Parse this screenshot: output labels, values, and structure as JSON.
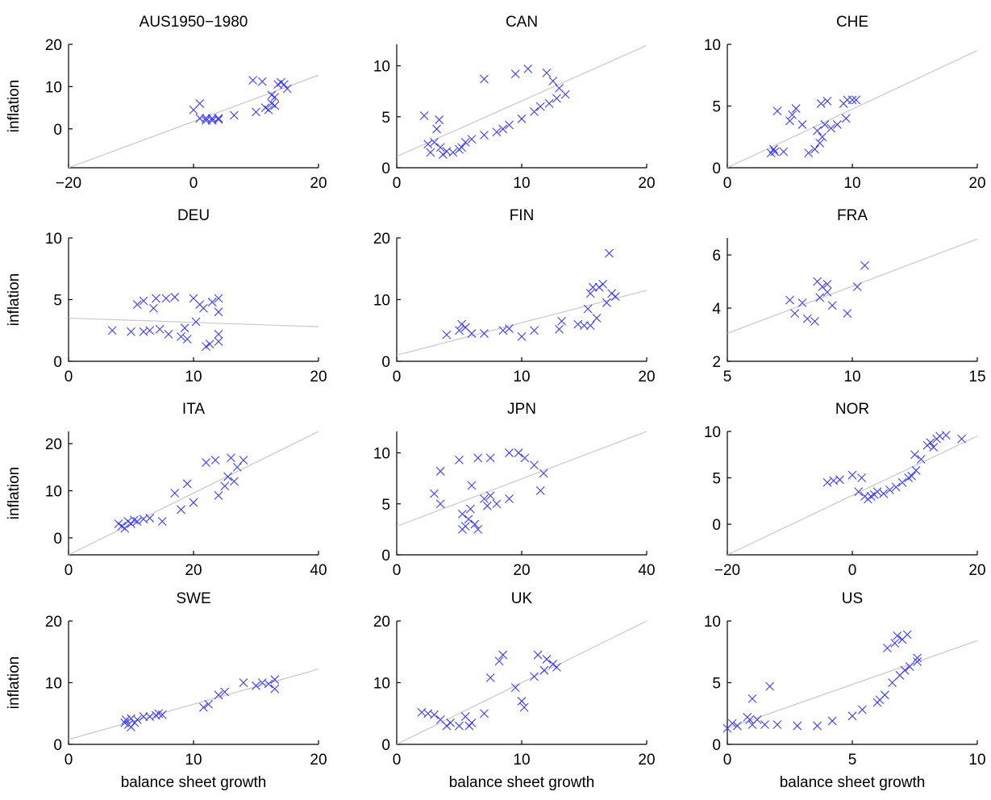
{
  "chart_data": [
    {
      "type": "scatter",
      "title": "AUS1950−1980",
      "ylabel": "inflation",
      "color": "#3b3bff",
      "fit_color": "#c8c8c8",
      "xlim": [
        -20,
        20
      ],
      "ylim": [
        -9.2,
        20
      ],
      "xticks": [
        {
          "value": -20,
          "label": "−20"
        },
        0,
        20
      ],
      "yticks": [
        0,
        10,
        20
      ],
      "x": [
        0,
        1,
        1,
        2,
        2,
        3,
        3,
        4,
        4,
        6.5,
        9.5,
        10,
        11,
        11.5,
        12,
        12.5,
        12.5,
        13,
        13.5,
        14,
        14.5,
        15,
        13
      ],
      "y": [
        4.5,
        6,
        2.5,
        2.5,
        2,
        2.5,
        2,
        2.2,
        2.5,
        3.2,
        11.5,
        4,
        11.2,
        5,
        4.5,
        8,
        6,
        7.5,
        10.5,
        11,
        10.5,
        9.5,
        5.5
      ],
      "fit": {
        "x": [
          -20,
          20
        ],
        "y": [
          -9.2,
          12.7
        ]
      }
    },
    {
      "type": "scatter",
      "title": "CAN",
      "color": "#3b3bff",
      "fit_color": "#c8c8c8",
      "xlim": [
        0,
        20
      ],
      "ylim": [
        0,
        12.1
      ],
      "xticks": [
        0,
        10,
        20
      ],
      "yticks": [
        0,
        5,
        10
      ],
      "x": [
        2.2,
        2.5,
        2.7,
        3,
        3.2,
        3.4,
        3.5,
        3.7,
        4,
        4.5,
        5,
        5.2,
        5.5,
        6,
        7,
        7,
        8,
        8.5,
        9,
        9.5,
        10,
        10.5,
        11,
        11.5,
        12,
        12.2,
        12.5,
        12.8,
        13,
        13.5
      ],
      "y": [
        5.1,
        2.3,
        1.5,
        2.5,
        3.8,
        4.7,
        2,
        1.3,
        1.6,
        1.5,
        1.8,
        2,
        2.5,
        2.8,
        3.2,
        8.7,
        3.5,
        3.8,
        4.2,
        9.2,
        4.8,
        9.7,
        5.5,
        6,
        9.3,
        6.3,
        8.5,
        6.8,
        7.8,
        7.2
      ],
      "fit": {
        "x": [
          0,
          20
        ],
        "y": [
          1.1,
          12
        ]
      }
    },
    {
      "type": "scatter",
      "title": "CHE",
      "color": "#3b3bff",
      "fit_color": "#c8c8c8",
      "xlim": [
        0,
        20
      ],
      "ylim": [
        0,
        10
      ],
      "xticks": [
        0,
        10,
        20
      ],
      "yticks": [
        0,
        5,
        10
      ],
      "x": [
        3.5,
        3.7,
        3.8,
        4,
        4.5,
        5,
        5.2,
        5.5,
        6,
        6.5,
        7,
        7.2,
        7.4,
        7.5,
        7.6,
        7.8,
        8,
        8.3,
        8.8,
        9.3,
        9.5,
        9.6,
        10,
        10.3
      ],
      "y": [
        1.2,
        1.5,
        1.3,
        4.6,
        1.3,
        3.8,
        4.3,
        4.8,
        3.5,
        1.2,
        1.5,
        3,
        2,
        5.2,
        2.5,
        3.5,
        5.4,
        3.2,
        3.5,
        5.2,
        4,
        5.5,
        5.5,
        5.5
      ],
      "fit": {
        "x": [
          0,
          20
        ],
        "y": [
          0,
          9.5
        ]
      }
    },
    {
      "type": "scatter",
      "title": "DEU",
      "ylabel": "inflation",
      "color": "#3b3bff",
      "fit_color": "#c8c8c8",
      "xlim": [
        0,
        20
      ],
      "ylim": [
        0,
        10
      ],
      "xticks": [
        0,
        10,
        20
      ],
      "yticks": [
        0,
        5,
        10
      ],
      "x": [
        3.5,
        5,
        5.5,
        6,
        6,
        6.5,
        6.8,
        7,
        7.3,
        7.8,
        8,
        8.5,
        9,
        9.3,
        9.5,
        10,
        10.2,
        10.5,
        10.8,
        11,
        11.3,
        11.5,
        12,
        12,
        12,
        12
      ],
      "y": [
        2.5,
        2.4,
        4.6,
        4.9,
        2.4,
        2.5,
        4.3,
        5.1,
        2.6,
        5.1,
        2.2,
        5.2,
        2,
        2.7,
        1.8,
        5.1,
        3.2,
        4.6,
        4.3,
        1.2,
        1.4,
        4.8,
        2.2,
        4,
        5.1,
        1.6
      ],
      "fit": {
        "x": [
          0,
          20
        ],
        "y": [
          3.5,
          2.8
        ]
      }
    },
    {
      "type": "scatter",
      "title": "FIN",
      "color": "#3b3bff",
      "fit_color": "#c8c8c8",
      "xlim": [
        0,
        20
      ],
      "ylim": [
        0,
        20
      ],
      "xticks": [
        0,
        10,
        20
      ],
      "yticks": [
        0,
        10,
        20
      ],
      "x": [
        4,
        5,
        5.2,
        5.5,
        6,
        7,
        8.5,
        9,
        10,
        11,
        13,
        13.2,
        14.5,
        15,
        15.3,
        15.5,
        15.7,
        16,
        16.2,
        16.5,
        16.8,
        17,
        17.2,
        17.5,
        15.5
      ],
      "y": [
        4.3,
        5,
        6,
        5.5,
        4.5,
        4.5,
        5,
        5.3,
        4,
        5,
        5.2,
        6.5,
        6,
        5.8,
        8.5,
        11,
        12,
        7,
        12,
        12.5,
        9.5,
        17.5,
        11,
        10.5,
        5.8
      ],
      "fit": {
        "x": [
          0,
          20
        ],
        "y": [
          1,
          11.5
        ]
      }
    },
    {
      "type": "scatter",
      "title": "FRA",
      "color": "#3b3bff",
      "fit_color": "#c8c8c8",
      "xlim": [
        5,
        15
      ],
      "ylim": [
        2,
        6.64
      ],
      "xticks": [
        5,
        10,
        15
      ],
      "yticks": [
        2,
        4,
        6
      ],
      "x": [
        7.5,
        7.7,
        8,
        8.2,
        8.5,
        8.6,
        8.7,
        8.8,
        9,
        9,
        9.2,
        9.8,
        10.2,
        10.5
      ],
      "y": [
        4.3,
        3.8,
        4.2,
        3.6,
        3.5,
        5,
        4.4,
        4.8,
        4.9,
        4.6,
        4.1,
        3.8,
        4.8,
        5.6
      ],
      "fit": {
        "x": [
          5,
          15
        ],
        "y": [
          3.05,
          6.6
        ]
      }
    },
    {
      "type": "scatter",
      "title": "ITA",
      "ylabel": "inflation",
      "color": "#3b3bff",
      "fit_color": "#c8c8c8",
      "xlim": [
        0,
        40
      ],
      "ylim": [
        -3.6,
        22.6
      ],
      "xticks": [
        0,
        20,
        40
      ],
      "yticks": [
        0,
        10,
        20
      ],
      "x": [
        8,
        8.5,
        9,
        9.5,
        10,
        10.5,
        11,
        12,
        13,
        15,
        17,
        18,
        19,
        20,
        22,
        23.5,
        24,
        25,
        25.5,
        26,
        26.5,
        27,
        28
      ],
      "y": [
        3,
        2.5,
        2,
        3.5,
        3,
        3.8,
        3.5,
        4,
        4.2,
        3.5,
        9.5,
        6,
        11.5,
        7.5,
        16,
        16.5,
        9,
        11,
        13,
        17,
        12,
        15,
        16.5
      ],
      "fit": {
        "x": [
          0,
          40
        ],
        "y": [
          -3.6,
          22.6
        ]
      }
    },
    {
      "type": "scatter",
      "title": "JPN",
      "color": "#3b3bff",
      "fit_color": "#c8c8c8",
      "xlim": [
        0,
        40
      ],
      "ylim": [
        0,
        12.1
      ],
      "xticks": [
        0,
        20,
        40
      ],
      "yticks": [
        0,
        5,
        10
      ],
      "x": [
        6,
        7,
        7,
        10,
        10.5,
        10.5,
        11,
        11.5,
        11.8,
        12,
        12.5,
        13,
        13,
        14,
        14.5,
        15,
        15,
        16,
        18,
        18,
        19.5,
        20.5,
        22,
        23,
        23.5
      ],
      "y": [
        6,
        8.2,
        5,
        9.3,
        4,
        2.5,
        2.8,
        3.5,
        4.5,
        6.8,
        3,
        2.5,
        9.5,
        5.5,
        4.8,
        9.5,
        5.8,
        5,
        10,
        5.5,
        10,
        9.5,
        8.8,
        6.3,
        8
      ],
      "fit": {
        "x": [
          0,
          40
        ],
        "y": [
          2.8,
          12.1
        ]
      }
    },
    {
      "type": "scatter",
      "title": "NOR",
      "color": "#3b3bff",
      "fit_color": "#c8c8c8",
      "xlim": [
        -20,
        20
      ],
      "ylim": [
        -3.3,
        10
      ],
      "xticks": [
        {
          "value": -20,
          "label": "−20"
        },
        0,
        20
      ],
      "yticks": [
        0,
        5,
        10
      ],
      "x": [
        -4,
        -3,
        -2,
        0,
        1,
        1.5,
        2,
        2.5,
        3,
        3.5,
        4,
        5,
        6,
        7,
        8,
        9,
        9.5,
        10,
        10.2,
        11,
        12,
        12.5,
        13,
        13.5,
        14,
        15,
        17.5
      ],
      "y": [
        4.5,
        4.7,
        4.8,
        5.3,
        3.5,
        5,
        3,
        2.7,
        3,
        3.2,
        3.5,
        3.3,
        3.7,
        4,
        4.5,
        5,
        5.2,
        7.5,
        5.8,
        7,
        8.5,
        8.8,
        8.3,
        9.2,
        9.5,
        9.6,
        9.2
      ],
      "fit": {
        "x": [
          -20,
          20
        ],
        "y": [
          -3.3,
          9.5
        ]
      }
    },
    {
      "type": "scatter",
      "title": "SWE",
      "ylabel": "inflation",
      "xlabel": "balance sheet growth",
      "color": "#3b3bff",
      "fit_color": "#c8c8c8",
      "xlim": [
        0,
        20
      ],
      "ylim": [
        0,
        20
      ],
      "xticks": [
        0,
        10,
        20
      ],
      "yticks": [
        0,
        10,
        20
      ],
      "x": [
        4.5,
        4.6,
        4.8,
        5,
        5,
        5.3,
        5.5,
        6,
        6.5,
        7,
        7.2,
        7.5,
        10.8,
        11.2,
        12,
        12.5,
        14,
        15,
        15.5,
        16,
        16.5,
        16.5
      ],
      "y": [
        3.5,
        4,
        3.2,
        2.8,
        4.2,
        3.5,
        4,
        4.5,
        4.5,
        4.7,
        5,
        4.8,
        6,
        6.5,
        8,
        8.5,
        10,
        9.5,
        10,
        9.8,
        10.5,
        9
      ],
      "fit": {
        "x": [
          0,
          20
        ],
        "y": [
          0.8,
          12.2
        ]
      }
    },
    {
      "type": "scatter",
      "title": "UK",
      "xlabel": "balance sheet growth",
      "color": "#3b3bff",
      "fit_color": "#c8c8c8",
      "xlim": [
        0,
        20
      ],
      "ylim": [
        0,
        20
      ],
      "xticks": [
        0,
        10,
        20
      ],
      "yticks": [
        0,
        10,
        20
      ],
      "x": [
        2,
        2.5,
        3,
        3.5,
        4,
        4.3,
        5,
        5.5,
        5.8,
        6,
        7,
        7.5,
        8.2,
        8.5,
        9.5,
        10,
        10.2,
        11,
        11.3,
        11.8,
        12,
        12.5,
        12.8
      ],
      "y": [
        5.2,
        5,
        4.8,
        4,
        3,
        3.5,
        3,
        4.5,
        3,
        3.5,
        5,
        10.8,
        13.5,
        14.5,
        9.2,
        7,
        6,
        11,
        14.5,
        12,
        13.8,
        13,
        12.5
      ],
      "fit": {
        "x": [
          0,
          20
        ],
        "y": [
          0,
          20
        ]
      }
    },
    {
      "type": "scatter",
      "title": "US",
      "xlabel": "balance sheet growth",
      "color": "#3b3bff",
      "fit_color": "#c8c8c8",
      "xlim": [
        0,
        10
      ],
      "ylim": [
        0,
        10
      ],
      "xticks": [
        0,
        5,
        10
      ],
      "yticks": [
        0,
        5,
        10
      ],
      "x": [
        0,
        0.2,
        0.4,
        0.8,
        0.9,
        1,
        1,
        1.2,
        1.5,
        1.7,
        2,
        2.8,
        3.6,
        4.2,
        5,
        5.4,
        6,
        6.1,
        6.3,
        6.4,
        6.6,
        6.7,
        6.8,
        6.9,
        7,
        7.1,
        7.2,
        7.3,
        7.6,
        7.6
      ],
      "y": [
        1.3,
        1.7,
        1.5,
        2.2,
        2,
        3.7,
        1.6,
        2,
        1.6,
        4.7,
        1.6,
        1.5,
        1.5,
        1.9,
        2.3,
        2.8,
        3.4,
        3.6,
        4,
        7.8,
        5,
        8.2,
        8.8,
        5.6,
        8.5,
        6,
        8.9,
        6.3,
        7,
        6.7
      ],
      "fit": {
        "x": [
          0,
          10
        ],
        "y": [
          1.3,
          8.4
        ]
      }
    }
  ]
}
